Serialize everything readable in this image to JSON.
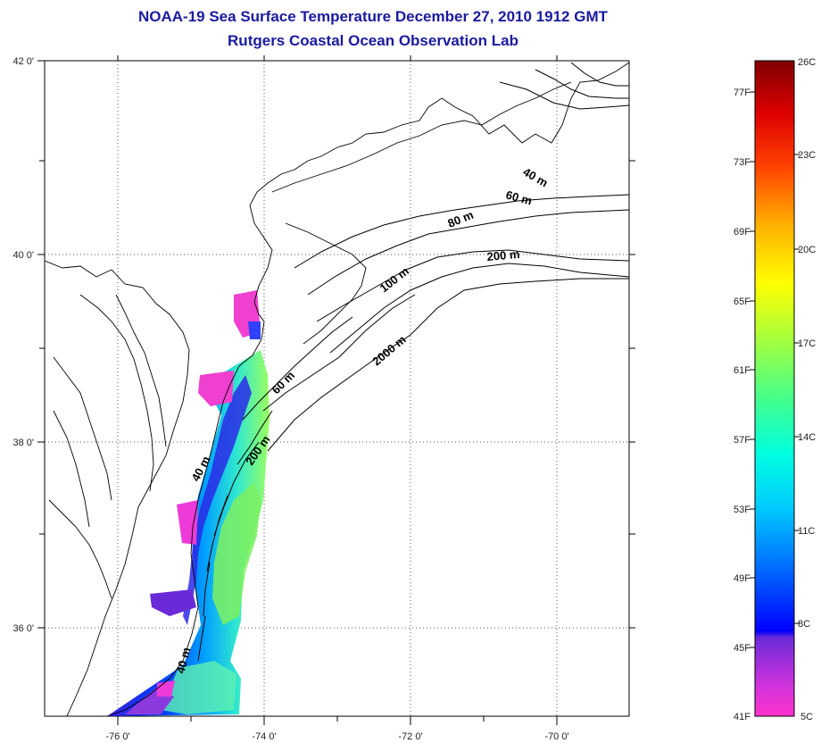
{
  "title": "NOAA-19 Sea Surface Temperature December 27, 2010 1912 GMT",
  "subtitle": "Rutgers Coastal Ocean Observation Lab",
  "map": {
    "lat_ticks": [
      "42 0'",
      "40 0'",
      "38 0'",
      "36 0'"
    ],
    "lon_ticks": [
      "-76 0'",
      "-74 0'",
      "-72 0'",
      "-70 0'"
    ],
    "contour_labels": [
      "40 m",
      "60 m",
      "80 m",
      "200 m",
      "100 m",
      "2000 m",
      "60 m",
      "200 m",
      "40 m",
      "40 m"
    ]
  },
  "colorbar": {
    "fahrenheit": [
      "77F",
      "73F",
      "69F",
      "65F",
      "61F",
      "57F",
      "53F",
      "49F",
      "45F",
      "41F"
    ],
    "celsius": [
      "26C",
      "23C",
      "20C",
      "17C",
      "14C",
      "11C",
      "8C",
      "5C"
    ]
  }
}
